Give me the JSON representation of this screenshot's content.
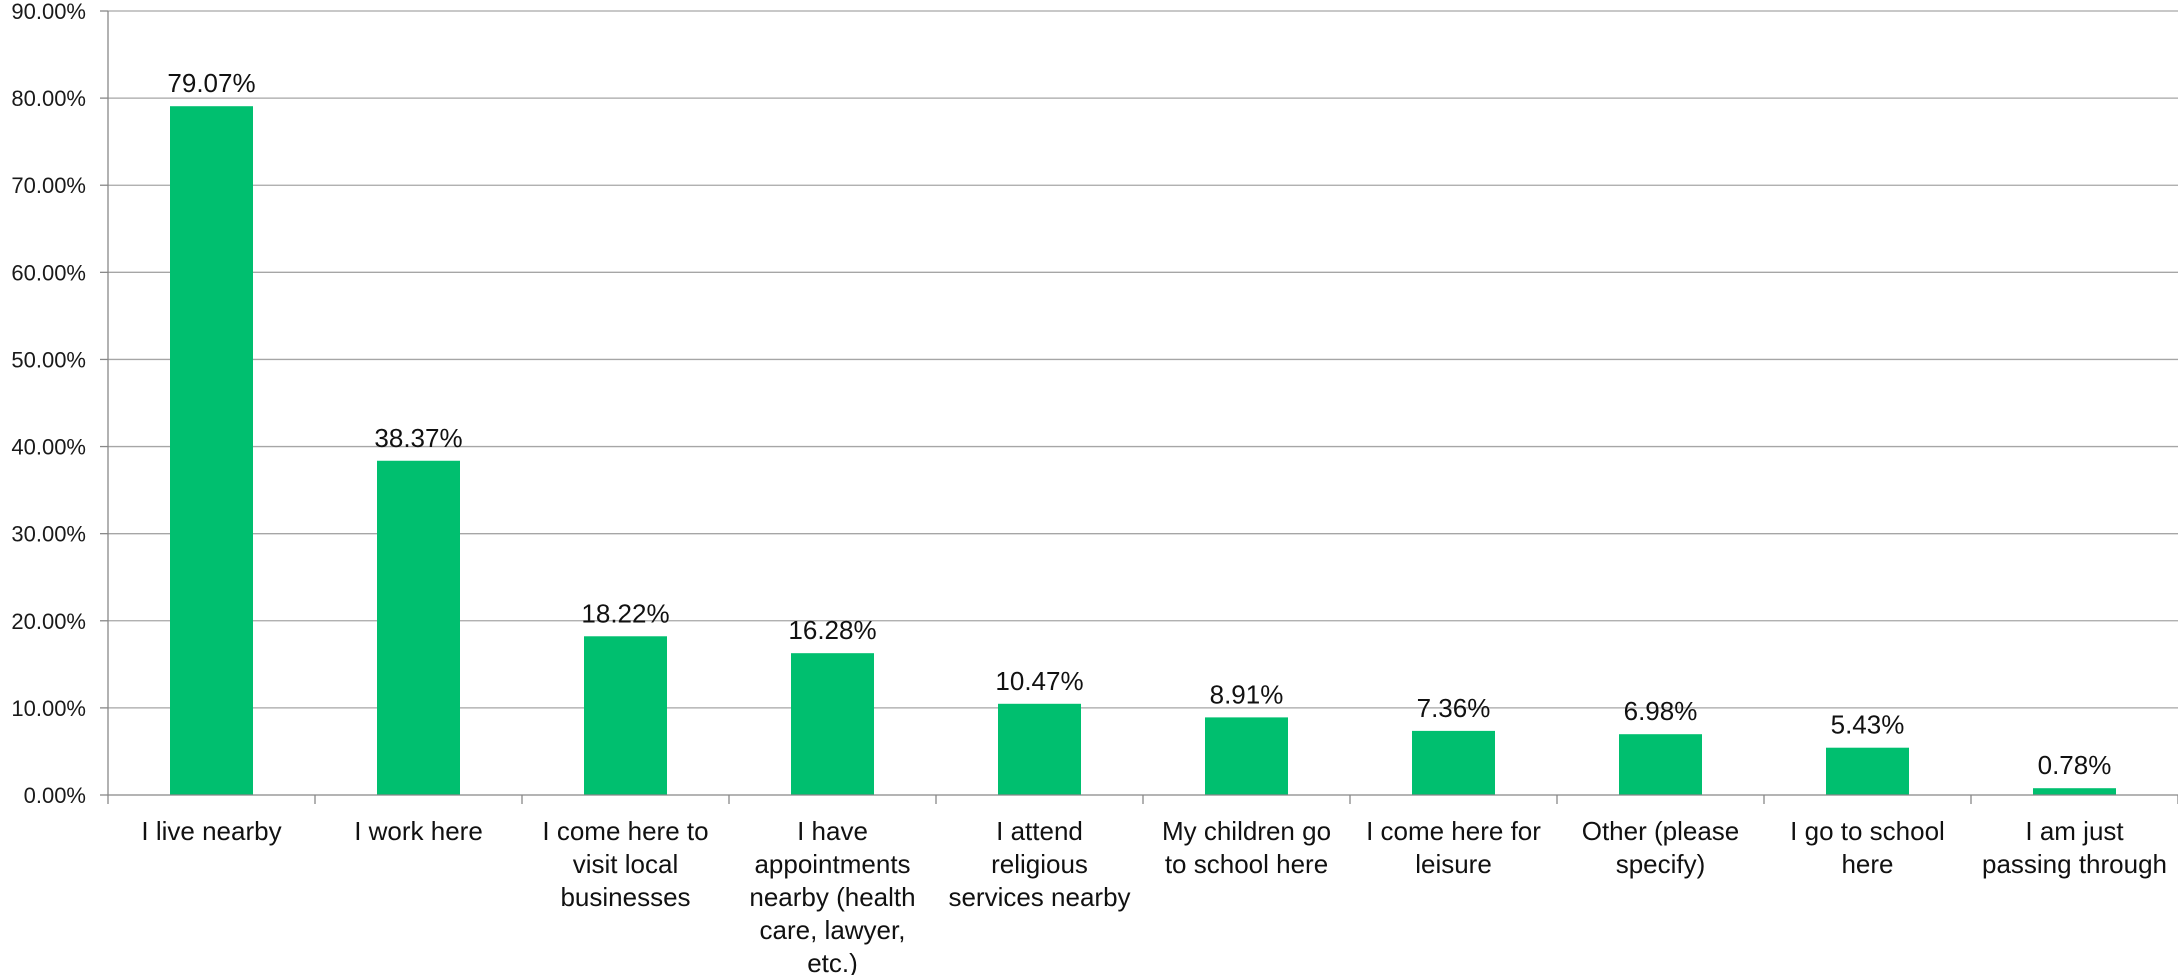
{
  "chart_data": {
    "type": "bar",
    "categories": [
      [
        "I live nearby"
      ],
      [
        "I work here"
      ],
      [
        "I come here to",
        "visit local",
        "businesses"
      ],
      [
        "I have",
        "appointments",
        "nearby (health",
        "care, lawyer,",
        "etc.)"
      ],
      [
        "I attend",
        "religious",
        "services nearby"
      ],
      [
        "My children go",
        "to school here"
      ],
      [
        "I come here for",
        "leisure"
      ],
      [
        "Other (please",
        "specify)"
      ],
      [
        "I go to school",
        "here"
      ],
      [
        "I am just",
        "passing through"
      ]
    ],
    "values": [
      79.07,
      38.37,
      18.22,
      16.28,
      10.47,
      8.91,
      7.36,
      6.98,
      5.43,
      0.78
    ],
    "data_labels": [
      "79.07%",
      "38.37%",
      "18.22%",
      "16.28%",
      "10.47%",
      "8.91%",
      "7.36%",
      "6.98%",
      "5.43%",
      "0.78%"
    ],
    "yticks": [
      "0.00%",
      "10.00%",
      "20.00%",
      "30.00%",
      "40.00%",
      "50.00%",
      "60.00%",
      "70.00%",
      "80.00%",
      "90.00%"
    ],
    "ylim": [
      0,
      90
    ],
    "grid": true,
    "legend": "none",
    "bar_color": "#00bf6f",
    "grid_color": "#a6a6a6",
    "axis_color": "#888888"
  }
}
